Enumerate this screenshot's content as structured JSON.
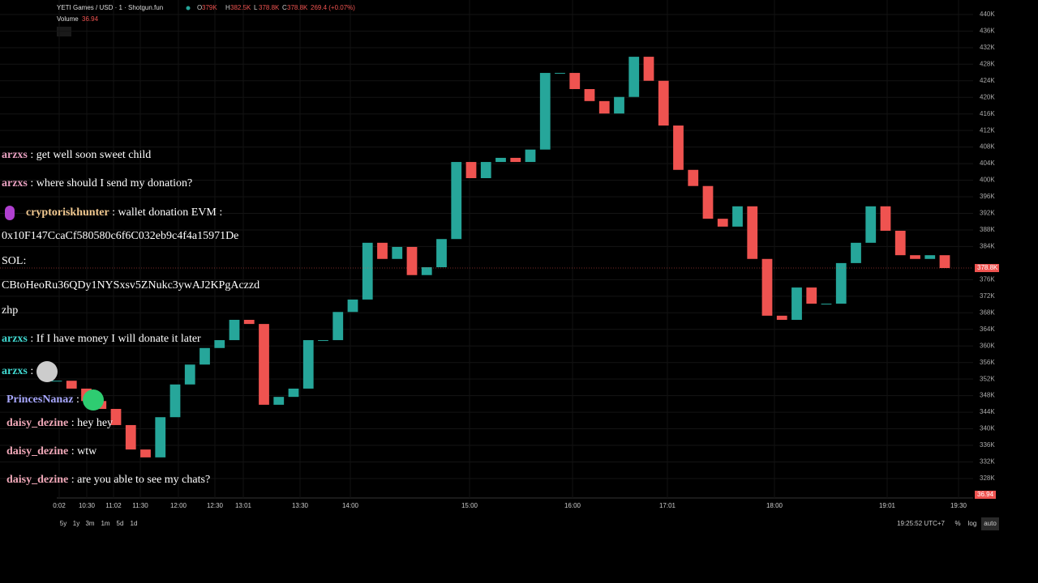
{
  "header": {
    "symbol": "YETI Games / USD · 1 · Shotgun.fun",
    "ohlc": [
      {
        "key": "O",
        "value": "379K"
      },
      {
        "key": "H",
        "value": "382.5K"
      },
      {
        "key": "L",
        "value": "378.8K"
      },
      {
        "key": "C",
        "value": "378.8K"
      }
    ],
    "change": "269.4 (+0.07%)",
    "volume_label": "Volume",
    "volume_value": "36.94"
  },
  "chart_data": {
    "type": "candlestick",
    "up_color": "#26a69a",
    "down_color": "#ef5350",
    "values": [
      351600,
      349700,
      346700,
      344800,
      340900,
      335000,
      333100,
      342800,
      350700,
      355500,
      359500,
      361400,
      366300,
      365300,
      345800,
      347700,
      349700,
      361400,
      361400,
      368200,
      371200,
      384900,
      381000,
      383900,
      377100,
      379000,
      385800,
      404400,
      400500,
      404400,
      405400,
      404400,
      407400,
      425900,
      425900,
      422000,
      419100,
      416100,
      420100,
      429800,
      424000,
      413200,
      402500,
      398600,
      390700,
      388800,
      393700,
      381000,
      367300,
      366300,
      374100,
      370200,
      370200,
      380000,
      384900,
      393700,
      387800,
      381900,
      381000,
      381900,
      378800
    ],
    "ylim": [
      323300,
      443500
    ],
    "yticks": [
      {
        "value": 440000,
        "label": "440K"
      },
      {
        "value": 436000,
        "label": "436K"
      },
      {
        "value": 432000,
        "label": "432K"
      },
      {
        "value": 428000,
        "label": "428K"
      },
      {
        "value": 424000,
        "label": "424K"
      },
      {
        "value": 420000,
        "label": "420K"
      },
      {
        "value": 416000,
        "label": "416K"
      },
      {
        "value": 412000,
        "label": "412K"
      },
      {
        "value": 408000,
        "label": "408K"
      },
      {
        "value": 404000,
        "label": "404K"
      },
      {
        "value": 400000,
        "label": "400K"
      },
      {
        "value": 396000,
        "label": "396K"
      },
      {
        "value": 392000,
        "label": "392K"
      },
      {
        "value": 388000,
        "label": "388K"
      },
      {
        "value": 384000,
        "label": "384K"
      },
      {
        "value": 376000,
        "label": "376K"
      },
      {
        "value": 372000,
        "label": "372K"
      },
      {
        "value": 368000,
        "label": "368K"
      },
      {
        "value": 364000,
        "label": "364K"
      },
      {
        "value": 360000,
        "label": "360K"
      },
      {
        "value": 356000,
        "label": "356K"
      },
      {
        "value": 352000,
        "label": "352K"
      },
      {
        "value": 348000,
        "label": "348K"
      },
      {
        "value": 344000,
        "label": "344K"
      },
      {
        "value": 340000,
        "label": "340K"
      },
      {
        "value": 336000,
        "label": "336K"
      },
      {
        "value": 332000,
        "label": "332K"
      },
      {
        "value": 328000,
        "label": "328K"
      }
    ],
    "last_price": {
      "value": 378800,
      "label": "378.8K"
    },
    "volume_axis_label": "36.94",
    "xticks": [
      "0:02",
      "10:30",
      "11:02",
      "11:30",
      "12:00",
      "12:30",
      "13:01",
      "13:30",
      "14:00",
      "15:00",
      "16:00",
      "17:01",
      "18:00",
      "19:01",
      "19:30"
    ]
  },
  "chat": [
    {
      "user": "arzxs",
      "text": ": get well soon sweet child",
      "color": "#e8a0c0"
    },
    {
      "user": "arzxs",
      "text": ": where should I send my donation?",
      "color": "#e8a0c0"
    },
    {
      "user": "cryptoriskhunter",
      "text": ": wallet donation EVM :",
      "color": "#f0c890"
    },
    {
      "user": null,
      "text": "0x10F147CcaCf580580c6f6C032eb9c4f4a15971De",
      "color": null
    },
    {
      "user": null,
      "text": "SOL:",
      "color": null
    },
    {
      "user": null,
      "text": "CBtoHeoRu36QDy1NYSxsv5ZNukc3ywAJ2KPgAczzd",
      "color": null
    },
    {
      "user": null,
      "text": "zhp",
      "color": null
    },
    {
      "user": "arzxs",
      "text": ": If I have money I will donate it later",
      "color": "#40d8d0"
    },
    {
      "user": "arzxs",
      "text": ":",
      "color": "#40d8d0"
    },
    {
      "user": "PrincesNanaz",
      "text": ":",
      "color": "#a8a8ff"
    },
    {
      "user": "daisy_dezine",
      "text": ": hey hey",
      "color": "#f0a8b8"
    },
    {
      "user": "daisy_dezine",
      "text": ": wtw",
      "color": "#f0a8b8"
    },
    {
      "user": "daisy_dezine",
      "text": ": are you able to see my chats?",
      "color": "#f0a8b8"
    }
  ],
  "footer": {
    "ranges": [
      "5y",
      "1y",
      "3m",
      "1m",
      "5d",
      "1d"
    ],
    "time": "19:25:52 UTC+7",
    "options": [
      "%",
      "log",
      "auto"
    ]
  }
}
